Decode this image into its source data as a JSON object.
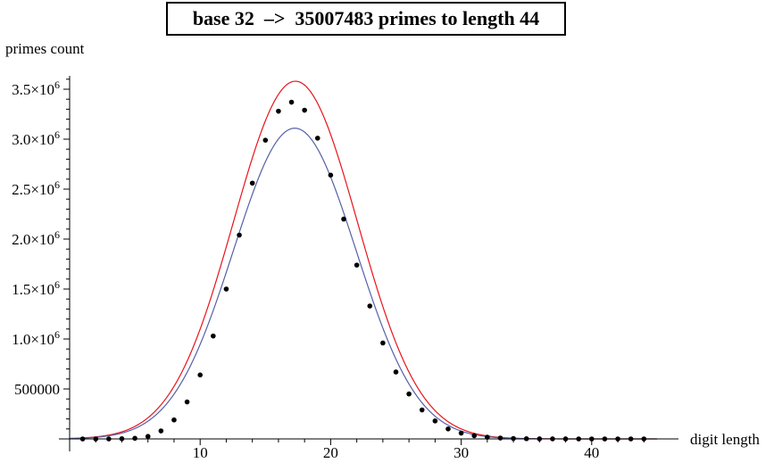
{
  "chart_data": {
    "type": "scatter",
    "title": "base 32  –>  35007483 primes to length 44",
    "xlabel": "digit length",
    "ylabel": "primes count",
    "xlim": [
      0,
      45.5
    ],
    "ylim": [
      0,
      3700000
    ],
    "xticks": [
      {
        "value": 10,
        "label": "10"
      },
      {
        "value": 20,
        "label": "20"
      },
      {
        "value": 30,
        "label": "30"
      },
      {
        "value": 40,
        "label": "40"
      }
    ],
    "yticks": [
      {
        "value": 500000,
        "label": "500000"
      },
      {
        "value": 1000000,
        "label": "1.0",
        "exp": true
      },
      {
        "value": 1500000,
        "label": "1.5",
        "exp": true
      },
      {
        "value": 2000000,
        "label": "2.0",
        "exp": true
      },
      {
        "value": 2500000,
        "label": "2.5",
        "exp": true
      },
      {
        "value": 3000000,
        "label": "3.0",
        "exp": true
      },
      {
        "value": 3500000,
        "label": "3.5",
        "exp": true
      }
    ],
    "grid": false,
    "series": [
      {
        "kind": "points",
        "color": "#000000",
        "x": [
          1,
          2,
          3,
          4,
          5,
          6,
          7,
          8,
          9,
          10,
          11,
          12,
          13,
          14,
          15,
          16,
          17,
          18,
          19,
          20,
          21,
          22,
          23,
          24,
          25,
          26,
          27,
          28,
          29,
          30,
          31,
          32,
          33,
          34,
          35,
          36,
          37,
          38,
          39,
          40,
          41,
          42,
          43,
          44
        ],
        "values": [
          0,
          0,
          0,
          2000,
          6000,
          25000,
          80000,
          190000,
          370000,
          640000,
          1030000,
          1500000,
          2040000,
          2560000,
          2990000,
          3280000,
          3370000,
          3290000,
          3010000,
          2640000,
          2200000,
          1740000,
          1330000,
          960000,
          670000,
          450000,
          290000,
          180000,
          100000,
          58000,
          32000,
          17000,
          9000,
          4500,
          2200,
          1000,
          500,
          200,
          100,
          50,
          20,
          10,
          5,
          2
        ]
      },
      {
        "kind": "curve",
        "color": "#e8141a",
        "mu": 17.3,
        "sigma": 4.75,
        "peak": 3580000,
        "x": [
          0,
          45
        ]
      },
      {
        "kind": "curve",
        "color": "#5560a8",
        "mu": 17.25,
        "sigma": 4.7,
        "peak": 3110000,
        "x": [
          0,
          45
        ]
      }
    ]
  }
}
